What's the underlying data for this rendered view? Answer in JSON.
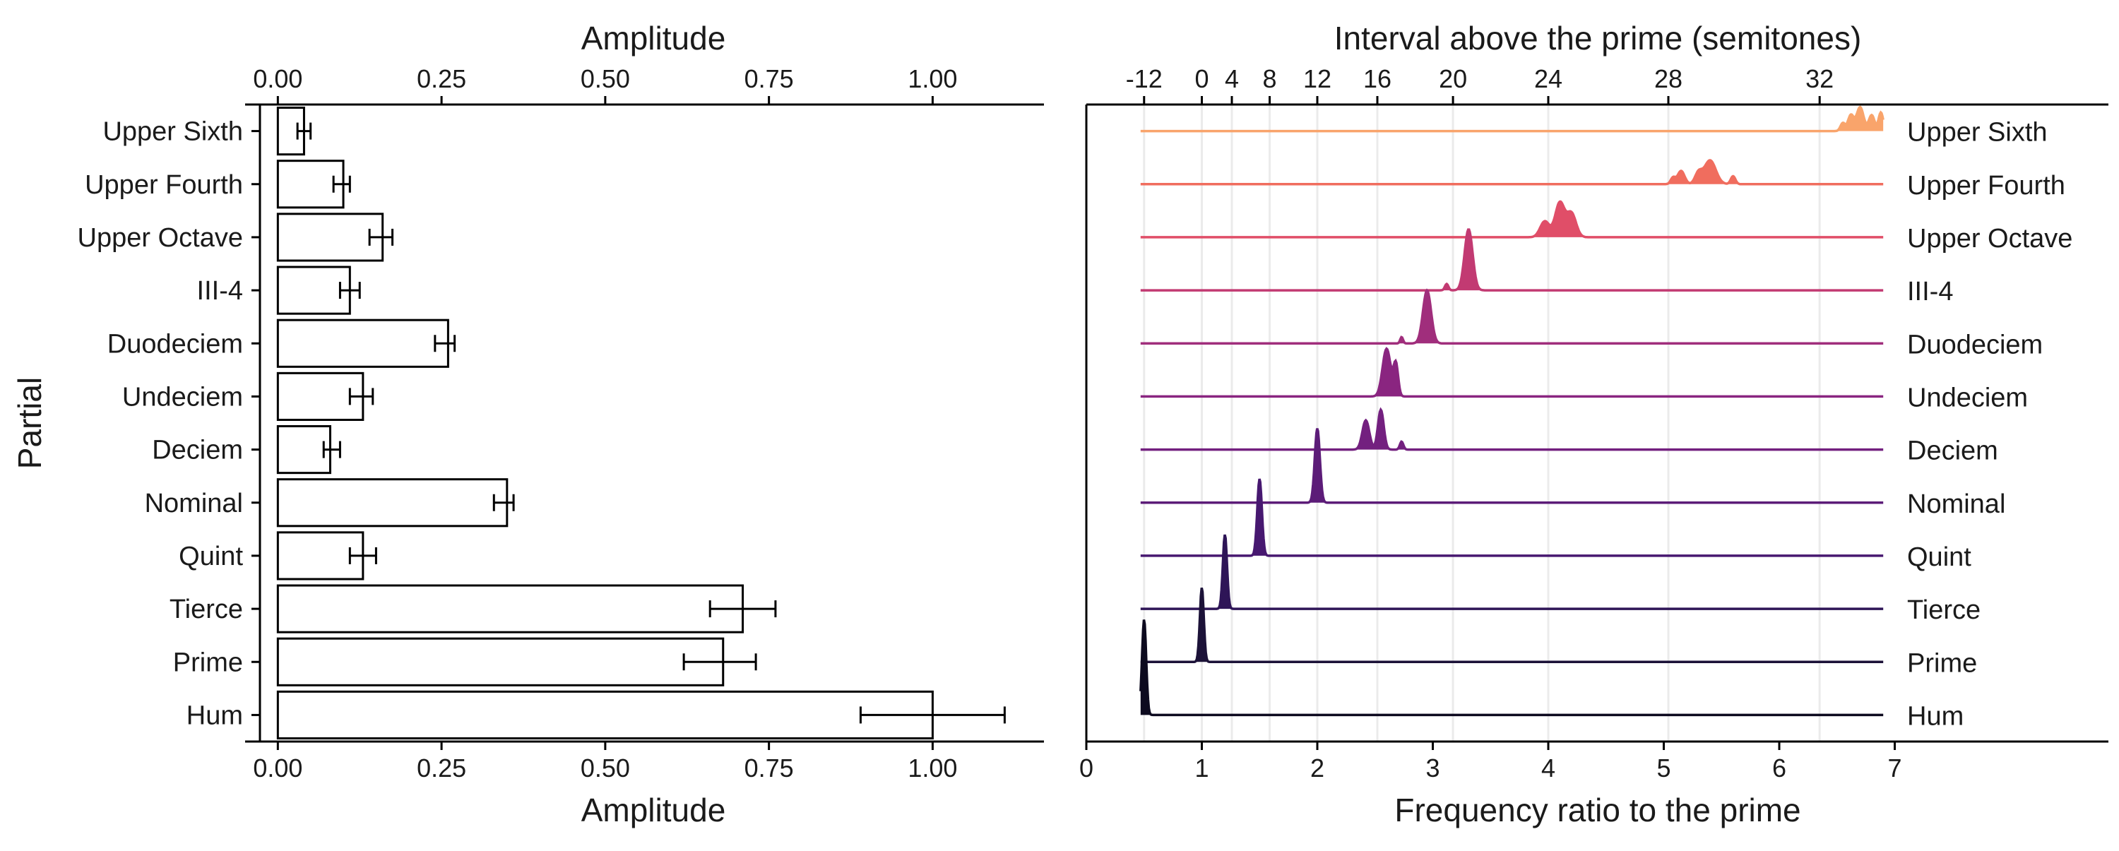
{
  "chart_data": [
    {
      "type": "bar",
      "orientation": "horizontal",
      "title": "",
      "xlabel": "Amplitude",
      "xlabel_top": "Amplitude",
      "ylabel": "Partial",
      "xlim": [
        -0.05,
        1.17
      ],
      "xticks": [
        0.0,
        0.25,
        0.5,
        0.75,
        1.0
      ],
      "xtick_labels": [
        "0.00",
        "0.25",
        "0.50",
        "0.75",
        "1.00"
      ],
      "categories": [
        "Hum",
        "Prime",
        "Tierce",
        "Quint",
        "Nominal",
        "Deciem",
        "Undeciem",
        "Duodeciem",
        "III-4",
        "Upper Octave",
        "Upper Fourth",
        "Upper Sixth"
      ],
      "values": [
        1.0,
        0.68,
        0.71,
        0.13,
        0.35,
        0.08,
        0.13,
        0.26,
        0.11,
        0.16,
        0.1,
        0.04
      ],
      "error_low": [
        0.89,
        0.62,
        0.66,
        0.11,
        0.33,
        0.07,
        0.11,
        0.24,
        0.095,
        0.14,
        0.085,
        0.03
      ],
      "error_high": [
        1.11,
        0.73,
        0.76,
        0.15,
        0.36,
        0.095,
        0.145,
        0.27,
        0.125,
        0.175,
        0.11,
        0.05
      ],
      "bar_fill": "#ffffff",
      "bar_stroke": "#000000",
      "grid": false
    },
    {
      "type": "ridgeline",
      "title": "",
      "xlabel": "Frequency ratio to the prime",
      "xlabel_top": "Interval above the prime (semitones)",
      "xlim": [
        0,
        8.85
      ],
      "xticks": [
        0,
        1,
        2,
        3,
        4,
        5,
        6,
        7
      ],
      "xtick_labels": [
        "0",
        "1",
        "2",
        "3",
        "4",
        "5",
        "6",
        "7"
      ],
      "top_ticks": [
        -12,
        0,
        4,
        8,
        12,
        16,
        20,
        24,
        28,
        32
      ],
      "top_tick_labels": [
        "-12",
        "0",
        "4",
        "8",
        "12",
        "16",
        "20",
        "24",
        "28",
        "32"
      ],
      "grid": "vertical minor at semitone tick positions",
      "line_range": [
        0.47,
        6.9
      ],
      "series": [
        {
          "name": "Hum",
          "color": "#0d0a1f",
          "peaks": [
            {
              "x": 0.5,
              "h": 1.8,
              "w": 0.018
            }
          ]
        },
        {
          "name": "Prime",
          "color": "#1c1238",
          "peaks": [
            {
              "x": 1.0,
              "h": 1.4,
              "w": 0.017
            }
          ]
        },
        {
          "name": "Tierce",
          "color": "#2e1557",
          "peaks": [
            {
              "x": 1.2,
              "h": 1.4,
              "w": 0.018
            }
          ]
        },
        {
          "name": "Quint",
          "color": "#471870",
          "peaks": [
            {
              "x": 1.5,
              "h": 1.45,
              "w": 0.02
            }
          ]
        },
        {
          "name": "Nominal",
          "color": "#5c1c78",
          "peaks": [
            {
              "x": 2.0,
              "h": 1.4,
              "w": 0.022
            }
          ]
        },
        {
          "name": "Deciem",
          "color": "#73207f",
          "peaks": [
            {
              "x": 2.42,
              "h": 0.55,
              "w": 0.03
            },
            {
              "x": 2.55,
              "h": 0.75,
              "w": 0.025
            },
            {
              "x": 2.73,
              "h": 0.15,
              "w": 0.015
            }
          ]
        },
        {
          "name": "Undeciem",
          "color": "#8a2580",
          "peaks": [
            {
              "x": 2.6,
              "h": 0.9,
              "w": 0.035
            },
            {
              "x": 2.68,
              "h": 0.6,
              "w": 0.02
            }
          ]
        },
        {
          "name": "Duodeciem",
          "color": "#a02e7c",
          "peaks": [
            {
              "x": 2.73,
              "h": 0.12,
              "w": 0.012
            },
            {
              "x": 2.95,
              "h": 1.0,
              "w": 0.035
            }
          ]
        },
        {
          "name": "III-4",
          "color": "#c23a72",
          "peaks": [
            {
              "x": 3.12,
              "h": 0.12,
              "w": 0.015
            },
            {
              "x": 3.31,
              "h": 1.15,
              "w": 0.035
            }
          ]
        },
        {
          "name": "Upper Octave",
          "color": "#e04e68",
          "peaks": [
            {
              "x": 3.97,
              "h": 0.3,
              "w": 0.04
            },
            {
              "x": 4.1,
              "h": 0.65,
              "w": 0.04
            },
            {
              "x": 4.2,
              "h": 0.45,
              "w": 0.04
            }
          ]
        },
        {
          "name": "Upper Fourth",
          "color": "#f06d5e",
          "peaks": [
            {
              "x": 5.08,
              "h": 0.12,
              "w": 0.02
            },
            {
              "x": 5.15,
              "h": 0.25,
              "w": 0.03
            },
            {
              "x": 5.3,
              "h": 0.2,
              "w": 0.03
            },
            {
              "x": 5.4,
              "h": 0.45,
              "w": 0.05
            },
            {
              "x": 5.6,
              "h": 0.15,
              "w": 0.02
            }
          ]
        },
        {
          "name": "Upper Sixth",
          "color": "#f9a46b",
          "peaks": [
            {
              "x": 6.55,
              "h": 0.15,
              "w": 0.02
            },
            {
              "x": 6.62,
              "h": 0.3,
              "w": 0.025
            },
            {
              "x": 6.7,
              "h": 0.45,
              "w": 0.03
            },
            {
              "x": 6.8,
              "h": 0.3,
              "w": 0.025
            },
            {
              "x": 6.88,
              "h": 0.35,
              "w": 0.02
            }
          ]
        }
      ]
    }
  ]
}
